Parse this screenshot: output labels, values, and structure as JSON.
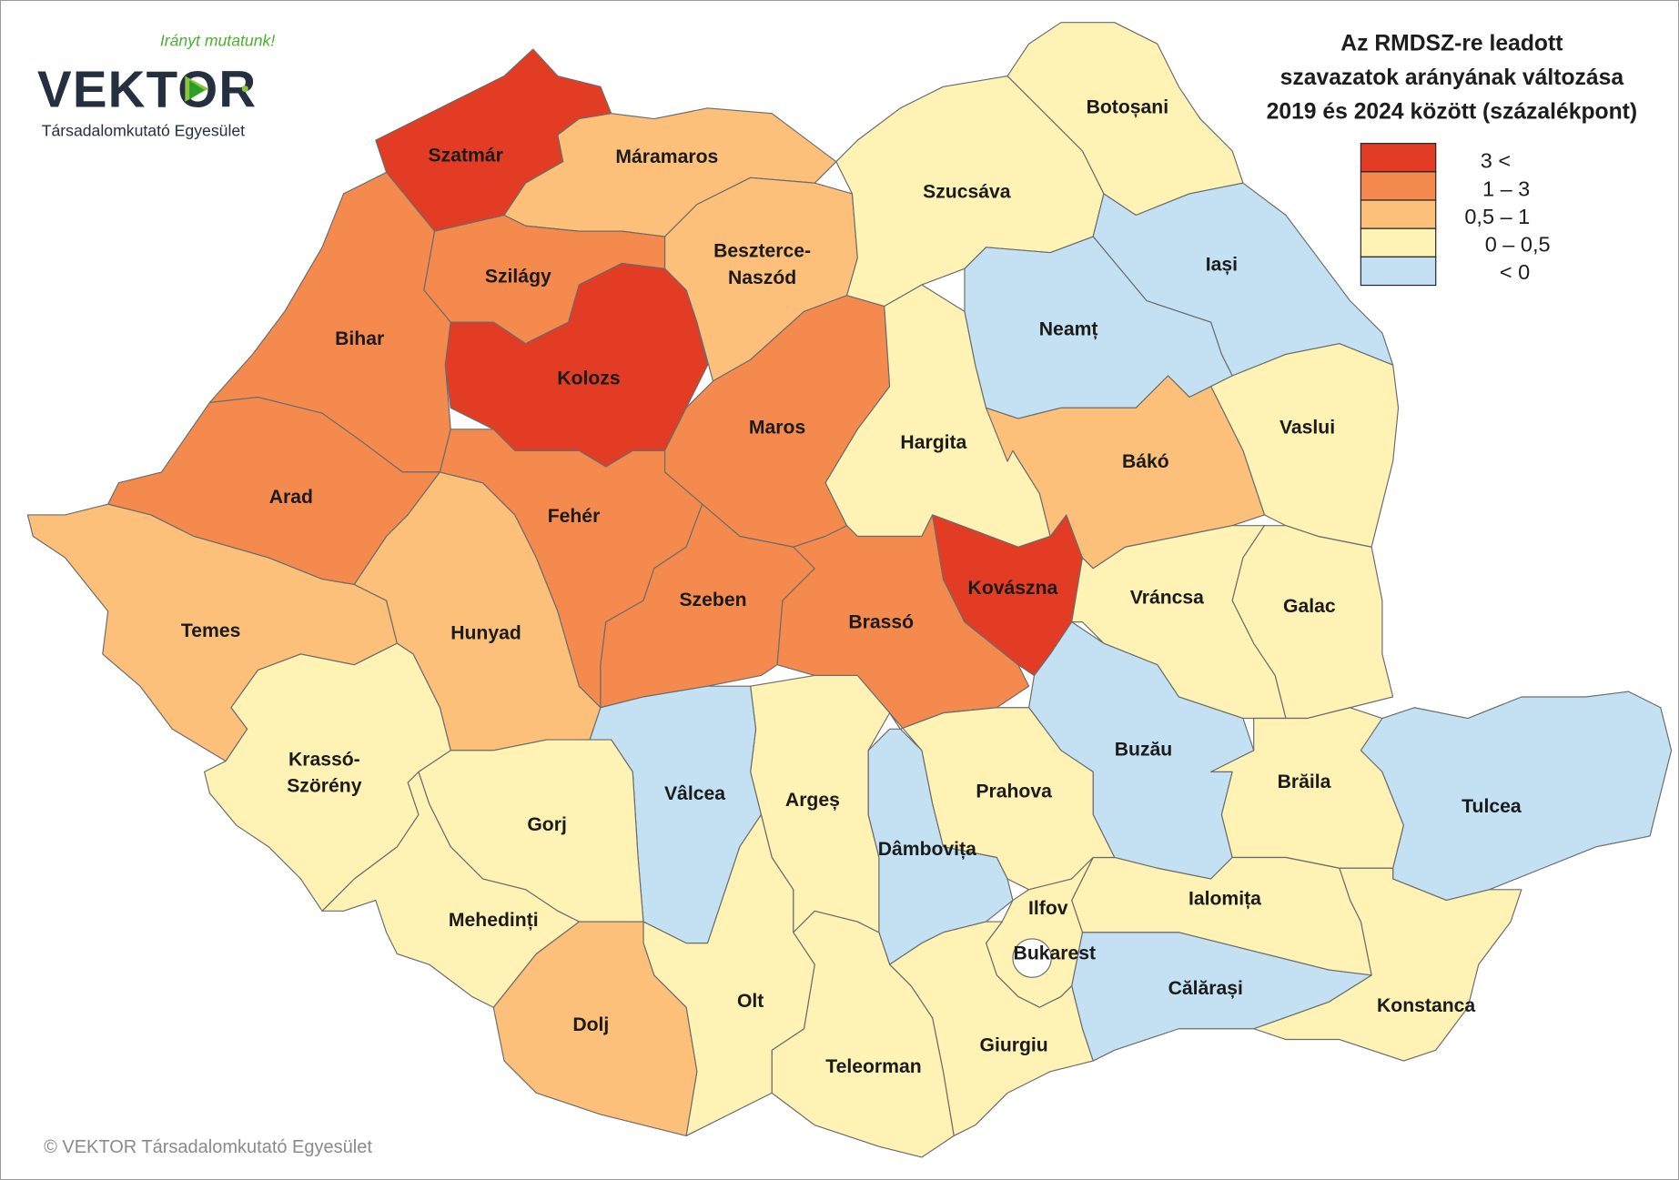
{
  "logo": {
    "slogan": "Irányt mutatunk!",
    "brand": "VEKTOR",
    "organization": "Társadalomkutató Egyesület",
    "brand_color": "#24303f",
    "accent_color": "#4cb030"
  },
  "title": {
    "lines": [
      "Az RMDSZ-re leadott",
      "szavazatok arányának változása",
      "2019 és 2024 között (százalékpont)"
    ]
  },
  "legend": [
    {
      "key": "gt3",
      "label": "3 <",
      "color": "#e23c24"
    },
    {
      "key": "1-3",
      "label": "1 – 3",
      "color": "#f58a4f"
    },
    {
      "key": "0.5-1",
      "label": "0,5 – 1",
      "color": "#fdc07b"
    },
    {
      "key": "0-0.5",
      "label": "0 – 0,5",
      "color": "#fef2b5"
    },
    {
      "key": "lt0",
      "label": "< 0",
      "color": "#c3e1f3"
    }
  ],
  "counties": [
    {
      "name": "Szatmár",
      "class": "gt3"
    },
    {
      "name": "Máramaros",
      "class": "0.5-1"
    },
    {
      "name": "Beszterce-Naszód",
      "class": "0.5-1"
    },
    {
      "name": "Szilágy",
      "class": "1-3"
    },
    {
      "name": "Bihar",
      "class": "1-3"
    },
    {
      "name": "Kolozs",
      "class": "gt3"
    },
    {
      "name": "Maros",
      "class": "1-3"
    },
    {
      "name": "Arad",
      "class": "1-3"
    },
    {
      "name": "Temes",
      "class": "0.5-1"
    },
    {
      "name": "Hunyad",
      "class": "0.5-1"
    },
    {
      "name": "Fehér",
      "class": "1-3"
    },
    {
      "name": "Szeben",
      "class": "1-3"
    },
    {
      "name": "Hargita",
      "class": "0-0.5"
    },
    {
      "name": "Brassó",
      "class": "1-3"
    },
    {
      "name": "Kovászna",
      "class": "gt3"
    },
    {
      "name": "Szucsáva",
      "class": "0-0.5"
    },
    {
      "name": "Botoșani",
      "class": "0-0.5"
    },
    {
      "name": "Iași",
      "class": "lt0"
    },
    {
      "name": "Neamț",
      "class": "lt0"
    },
    {
      "name": "Vaslui",
      "class": "0-0.5"
    },
    {
      "name": "Bákó",
      "class": "0.5-1"
    },
    {
      "name": "Vráncsa",
      "class": "0-0.5"
    },
    {
      "name": "Galac",
      "class": "0-0.5"
    },
    {
      "name": "Buzău",
      "class": "lt0"
    },
    {
      "name": "Brăila",
      "class": "0-0.5"
    },
    {
      "name": "Tulcea",
      "class": "lt0"
    },
    {
      "name": "Konstanca",
      "class": "0-0.5"
    },
    {
      "name": "Ialomița",
      "class": "0-0.5"
    },
    {
      "name": "Călărași",
      "class": "lt0"
    },
    {
      "name": "Prahova",
      "class": "0-0.5"
    },
    {
      "name": "Dâmbovița",
      "class": "lt0"
    },
    {
      "name": "Ilfov",
      "class": "0-0.5"
    },
    {
      "name": "Bukarest",
      "class": "0-0.5"
    },
    {
      "name": "Giurgiu",
      "class": "0-0.5"
    },
    {
      "name": "Teleorman",
      "class": "0-0.5"
    },
    {
      "name": "Argeș",
      "class": "0-0.5"
    },
    {
      "name": "Vâlcea",
      "class": "lt0"
    },
    {
      "name": "Olt",
      "class": "0-0.5"
    },
    {
      "name": "Dolj",
      "class": "0.5-1"
    },
    {
      "name": "Gorj",
      "class": "0-0.5"
    },
    {
      "name": "Mehedinți",
      "class": "0-0.5"
    },
    {
      "name": "Krassó-Szörény",
      "class": "0-0.5"
    }
  ],
  "footer": "© VEKTOR Társadalomkutató Egyesület"
}
